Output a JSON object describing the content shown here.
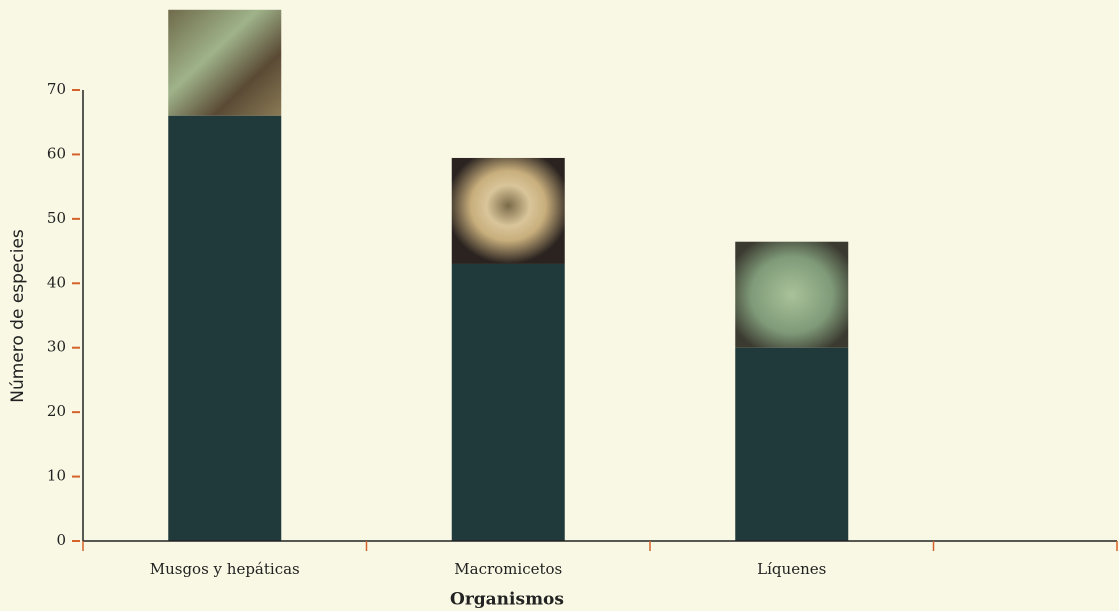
{
  "chart_data": {
    "type": "bar",
    "x_label": "Organismos",
    "y_label": "Número de especies",
    "categories": [
      "Musgos y hepáticas",
      "Macromicetos",
      "Líquenes",
      null
    ],
    "values": [
      66,
      43,
      30,
      null
    ],
    "color": "#203a3b",
    "ylim": [
      0,
      70
    ],
    "yticks": [
      0,
      10,
      20,
      30,
      40,
      50,
      60,
      70
    ]
  }
}
